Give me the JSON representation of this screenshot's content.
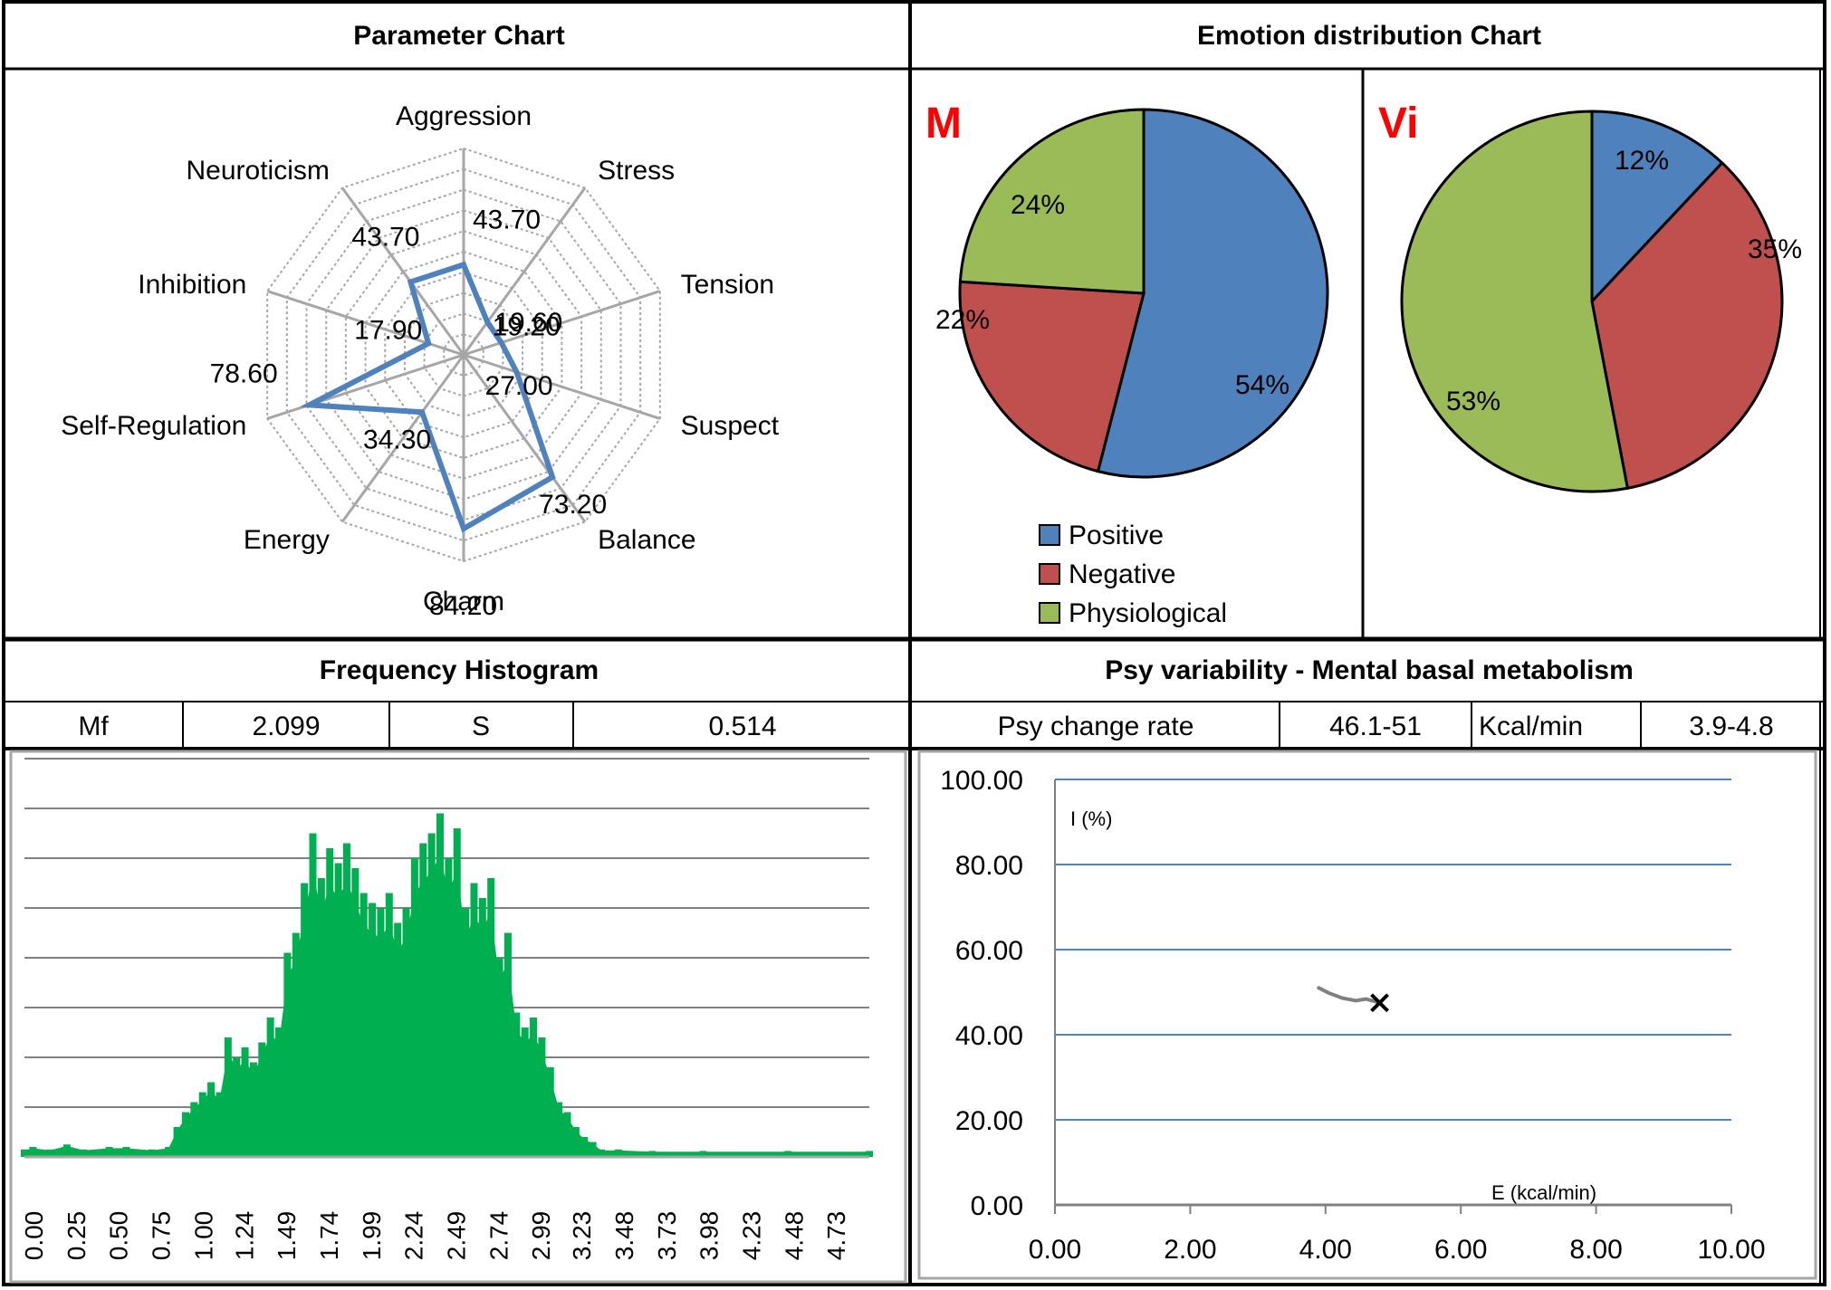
{
  "panels": {
    "parameter_title": "Parameter Chart",
    "emotion_title": "Emotion distribution Chart",
    "histogram_title": "Frequency Histogram",
    "psy_title": "Psy variability - Mental basal metabolism"
  },
  "histogram_stats": {
    "mf_label": "Mf",
    "mf_value": "2.099",
    "s_label": "S",
    "s_value": "0.514"
  },
  "psy_stats": {
    "rate_label": "Psy change rate",
    "rate_value": "46.1-51",
    "kcal_label": "Kcal/min",
    "kcal_value": "3.9-4.8"
  },
  "colors": {
    "radar_line": "#4f81bd",
    "grid": "#a6a6a6",
    "positive": "#4f81bd",
    "negative": "#c0504d",
    "physiological": "#9bbb59",
    "hist_bar": "#00b050",
    "psy_grid": "#4f81bd",
    "pie_letter": "#ff0000",
    "trail": "#808080"
  },
  "chart_data": [
    {
      "type": "radar",
      "title": "Parameter Chart",
      "axes": [
        "Aggression",
        "Stress",
        "Tension",
        "Suspect",
        "Balance",
        "Charm",
        "Energy",
        "Self-Regulation",
        "Inhibition",
        "Neuroticism"
      ],
      "values": [
        43.7,
        19.6,
        19.2,
        27.0,
        73.2,
        84.2,
        34.3,
        78.6,
        17.9,
        43.7
      ],
      "value_labels": [
        "43.70",
        "19.60",
        "19.20",
        "27.00",
        "73.20",
        "84.20",
        "34.30",
        "78.60",
        "17.90",
        "43.70"
      ],
      "range": [
        0,
        100
      ],
      "grid_rings": 10
    },
    {
      "type": "pie",
      "title": "M",
      "labels": [
        "Positive",
        "Negative",
        "Physiological"
      ],
      "values": [
        54,
        22,
        24
      ],
      "value_labels": [
        "54%",
        "22%",
        "24%"
      ],
      "legend": "bottom-left"
    },
    {
      "type": "pie",
      "title": "Vi",
      "labels": [
        "Positive",
        "Negative",
        "Physiological"
      ],
      "values": [
        12,
        35,
        53
      ],
      "value_labels": [
        "12%",
        "35%",
        "53%"
      ]
    },
    {
      "type": "bar",
      "title": "Frequency Histogram",
      "tick_labels": [
        "0.00",
        "0.25",
        "0.50",
        "0.75",
        "1.00",
        "1.24",
        "1.49",
        "1.74",
        "1.99",
        "2.24",
        "2.49",
        "2.74",
        "2.99",
        "3.23",
        "3.48",
        "3.73",
        "3.98",
        "4.23",
        "4.48",
        "4.73"
      ],
      "xlim": [
        0.0,
        4.98
      ],
      "ylim": [
        0,
        8
      ],
      "peaks": [
        [
          0.0,
          0.15
        ],
        [
          0.05,
          0.2
        ],
        [
          0.15,
          0.15
        ],
        [
          0.25,
          0.25
        ],
        [
          0.35,
          0.15
        ],
        [
          0.5,
          0.2
        ],
        [
          0.6,
          0.2
        ],
        [
          0.75,
          0.15
        ],
        [
          0.85,
          0.2
        ],
        [
          0.9,
          0.6
        ],
        [
          0.95,
          0.9
        ],
        [
          1.0,
          1.1
        ],
        [
          1.05,
          1.3
        ],
        [
          1.1,
          1.5
        ],
        [
          1.15,
          1.3
        ],
        [
          1.2,
          2.4
        ],
        [
          1.25,
          2.0
        ],
        [
          1.3,
          2.2
        ],
        [
          1.35,
          1.9
        ],
        [
          1.4,
          2.3
        ],
        [
          1.45,
          2.8
        ],
        [
          1.5,
          2.6
        ],
        [
          1.55,
          4.1
        ],
        [
          1.6,
          4.5
        ],
        [
          1.65,
          5.5
        ],
        [
          1.7,
          6.5
        ],
        [
          1.75,
          5.6
        ],
        [
          1.8,
          6.2
        ],
        [
          1.85,
          5.9
        ],
        [
          1.9,
          6.3
        ],
        [
          1.95,
          5.8
        ],
        [
          2.0,
          5.3
        ],
        [
          2.05,
          5.1
        ],
        [
          2.1,
          5.0
        ],
        [
          2.15,
          5.3
        ],
        [
          2.2,
          4.7
        ],
        [
          2.25,
          5.0
        ],
        [
          2.3,
          6.0
        ],
        [
          2.35,
          6.3
        ],
        [
          2.4,
          6.5
        ],
        [
          2.45,
          6.9
        ],
        [
          2.5,
          6.0
        ],
        [
          2.55,
          6.6
        ],
        [
          2.6,
          5.0
        ],
        [
          2.65,
          5.5
        ],
        [
          2.7,
          5.2
        ],
        [
          2.75,
          5.6
        ],
        [
          2.8,
          4.0
        ],
        [
          2.85,
          4.5
        ],
        [
          2.9,
          2.9
        ],
        [
          2.95,
          2.6
        ],
        [
          3.0,
          2.8
        ],
        [
          3.05,
          2.4
        ],
        [
          3.1,
          1.8
        ],
        [
          3.15,
          1.1
        ],
        [
          3.2,
          0.9
        ],
        [
          3.25,
          0.6
        ],
        [
          3.3,
          0.4
        ],
        [
          3.35,
          0.3
        ],
        [
          3.4,
          0.15
        ],
        [
          3.5,
          0.15
        ],
        [
          3.7,
          0.12
        ],
        [
          4.0,
          0.12
        ],
        [
          4.5,
          0.12
        ],
        [
          4.98,
          0.12
        ]
      ]
    },
    {
      "type": "scatter",
      "title": "Psy variability - Mental basal metabolism",
      "xlabel": "E (kcal/min)",
      "ylabel": "I (%)",
      "xlim": [
        0,
        10
      ],
      "ylim": [
        0,
        100
      ],
      "x_ticks": [
        "0.00",
        "2.00",
        "4.00",
        "6.00",
        "8.00",
        "10.00"
      ],
      "y_ticks": [
        "0.00",
        "20.00",
        "40.00",
        "60.00",
        "80.00",
        "100.00"
      ],
      "trail": [
        [
          3.9,
          51.0
        ],
        [
          4.05,
          49.8
        ],
        [
          4.25,
          48.6
        ],
        [
          4.45,
          48.0
        ],
        [
          4.6,
          48.4
        ],
        [
          4.8,
          47.5
        ]
      ],
      "point": [
        4.8,
        47.5
      ]
    }
  ]
}
